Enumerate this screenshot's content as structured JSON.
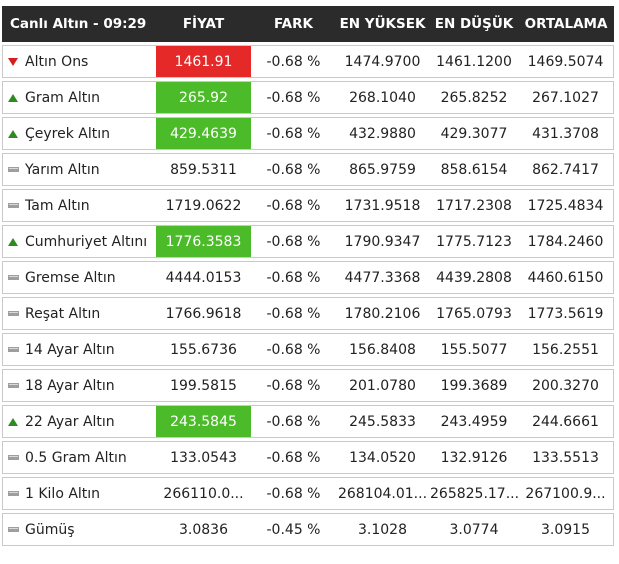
{
  "header": {
    "title": "Canlı Altın - 09:29",
    "columns": [
      "FİYAT",
      "FARK",
      "EN YÜKSEK",
      "EN DÜŞÜK",
      "ORTALAMA"
    ]
  },
  "colors": {
    "up": "#4cbb2a",
    "down": "#e52828",
    "header_bg": "#2b2b2b",
    "diff_text": "#9a1b2a"
  },
  "rows": [
    {
      "name": "Altın Ons",
      "trend": "down-arrow-icon",
      "price": "1461.91",
      "highlight": "down",
      "diff": "-0.68 %",
      "high": "1474.9700",
      "low": "1461.1200",
      "avg": "1469.5074"
    },
    {
      "name": "Gram Altın",
      "trend": "up-arrow-icon",
      "price": "265.92",
      "highlight": "up",
      "diff": "-0.68 %",
      "high": "268.1040",
      "low": "265.8252",
      "avg": "267.1027"
    },
    {
      "name": "Çeyrek Altın",
      "trend": "up-arrow-icon",
      "price": "429.4639",
      "highlight": "up",
      "diff": "-0.68 %",
      "high": "432.9880",
      "low": "429.3077",
      "avg": "431.3708"
    },
    {
      "name": "Yarım Altın",
      "trend": "dash-icon",
      "price": "859.5311",
      "highlight": "none",
      "diff": "-0.68 %",
      "high": "865.9759",
      "low": "858.6154",
      "avg": "862.7417"
    },
    {
      "name": "Tam Altın",
      "trend": "dash-icon",
      "price": "1719.0622",
      "highlight": "none",
      "diff": "-0.68 %",
      "high": "1731.9518",
      "low": "1717.2308",
      "avg": "1725.4834"
    },
    {
      "name": "Cumhuriyet Altını",
      "trend": "up-arrow-icon",
      "price": "1776.3583",
      "highlight": "up",
      "diff": "-0.68 %",
      "high": "1790.9347",
      "low": "1775.7123",
      "avg": "1784.2460"
    },
    {
      "name": "Gremse Altın",
      "trend": "dash-icon",
      "price": "4444.0153",
      "highlight": "none",
      "diff": "-0.68 %",
      "high": "4477.3368",
      "low": "4439.2808",
      "avg": "4460.6150"
    },
    {
      "name": "Reşat Altın",
      "trend": "dash-icon",
      "price": "1766.9618",
      "highlight": "none",
      "diff": "-0.68 %",
      "high": "1780.2106",
      "low": "1765.0793",
      "avg": "1773.5619"
    },
    {
      "name": "14 Ayar Altın",
      "trend": "dash-icon",
      "price": "155.6736",
      "highlight": "none",
      "diff": "-0.68 %",
      "high": "156.8408",
      "low": "155.5077",
      "avg": "156.2551"
    },
    {
      "name": "18 Ayar Altın",
      "trend": "dash-icon",
      "price": "199.5815",
      "highlight": "none",
      "diff": "-0.68 %",
      "high": "201.0780",
      "low": "199.3689",
      "avg": "200.3270"
    },
    {
      "name": "22 Ayar Altın",
      "trend": "up-arrow-icon",
      "price": "243.5845",
      "highlight": "up",
      "diff": "-0.68 %",
      "high": "245.5833",
      "low": "243.4959",
      "avg": "244.6661"
    },
    {
      "name": "0.5 Gram Altın",
      "trend": "dash-icon",
      "price": "133.0543",
      "highlight": "none",
      "diff": "-0.68 %",
      "high": "134.0520",
      "low": "132.9126",
      "avg": "133.5513"
    },
    {
      "name": "1 Kilo Altın",
      "trend": "dash-icon",
      "price": "266110.0...",
      "highlight": "none",
      "diff": "-0.68 %",
      "high": "268104.01...",
      "low": "265825.17...",
      "avg": "267100.9..."
    },
    {
      "name": "Gümüş",
      "trend": "dash-icon",
      "price": "3.0836",
      "highlight": "none",
      "diff": "-0.45 %",
      "high": "3.1028",
      "low": "3.0774",
      "avg": "3.0915"
    }
  ]
}
